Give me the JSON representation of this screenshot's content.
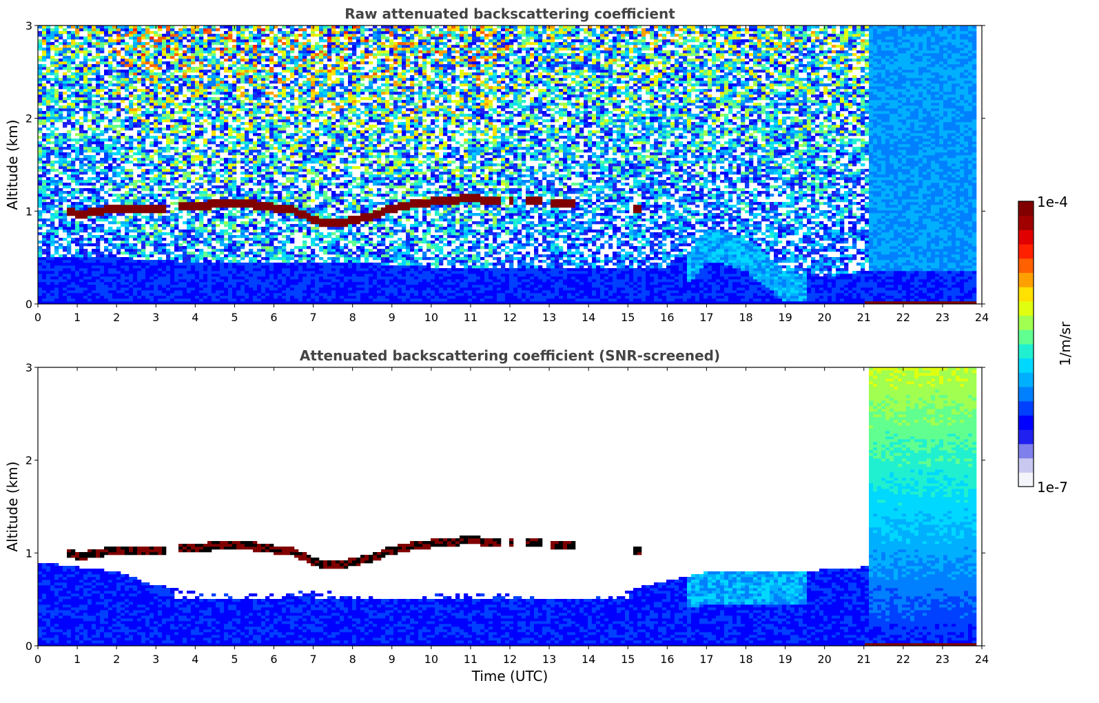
{
  "chart_data": [
    {
      "type": "heatmap",
      "title": "Raw attenuated backscattering coefficient",
      "xlabel": "",
      "ylabel": "Altitude (km)",
      "xlim": [
        0,
        24
      ],
      "ylim": [
        0,
        3
      ],
      "x_ticks": [
        "0",
        "1",
        "2",
        "3",
        "4",
        "5",
        "6",
        "7",
        "8",
        "9",
        "10",
        "11",
        "12",
        "13",
        "14",
        "15",
        "16",
        "17",
        "18",
        "19",
        "20",
        "21",
        "22",
        "23",
        "24"
      ],
      "y_ticks": [
        "0",
        "1",
        "2",
        "3"
      ],
      "grid": false,
      "data_end_time": 23.85,
      "noise_level": "high",
      "cloud_layer_altitude_km": [
        [
          0.7,
          1.02
        ],
        [
          1.0,
          0.97
        ],
        [
          1.5,
          0.99
        ],
        [
          1.8,
          1.02
        ],
        [
          2.5,
          1.03
        ],
        [
          3.0,
          1.03
        ],
        [
          3.5,
          1.05
        ],
        [
          4.0,
          1.04
        ],
        [
          4.5,
          1.08
        ],
        [
          5.0,
          1.07
        ],
        [
          5.5,
          1.07
        ],
        [
          6.0,
          1.04
        ],
        [
          6.5,
          1.02
        ],
        [
          6.8,
          0.95
        ],
        [
          7.0,
          0.9
        ],
        [
          7.5,
          0.87
        ],
        [
          8.0,
          0.9
        ],
        [
          8.5,
          0.95
        ],
        [
          9.0,
          1.03
        ],
        [
          9.5,
          1.07
        ],
        [
          10.0,
          1.1
        ],
        [
          10.5,
          1.12
        ],
        [
          11.0,
          1.14
        ],
        [
          11.5,
          1.12
        ],
        [
          12.0,
          1.1
        ],
        [
          12.5,
          1.1
        ],
        [
          13.0,
          1.1
        ],
        [
          13.6,
          1.08
        ],
        [
          15.2,
          1.02
        ]
      ],
      "cloud_gaps_h": [
        [
          3.3,
          3.6
        ],
        [
          6.8,
          6.85
        ],
        [
          11.8,
          12.0
        ],
        [
          12.1,
          12.45
        ],
        [
          12.85,
          13.0
        ],
        [
          13.7,
          15.1
        ]
      ],
      "boundary_layer_top_km": [
        [
          0,
          0.5
        ],
        [
          2,
          0.5
        ],
        [
          4,
          0.45
        ],
        [
          6,
          0.45
        ],
        [
          8,
          0.45
        ],
        [
          10,
          0.4
        ],
        [
          12,
          0.4
        ],
        [
          14,
          0.4
        ],
        [
          16,
          0.4
        ],
        [
          16.5,
          0.55
        ],
        [
          17,
          0.8
        ],
        [
          17.5,
          0.78
        ],
        [
          18,
          0.7
        ],
        [
          18.5,
          0.55
        ],
        [
          19,
          0.35
        ],
        [
          20,
          0.3
        ],
        [
          21,
          0.35
        ],
        [
          21.2,
          0.35
        ]
      ],
      "precipitation_columns_h": [
        21.2,
        21.55,
        22.0,
        22.45,
        23.0
      ]
    },
    {
      "type": "heatmap",
      "title": "Attenuated backscattering coefficient (SNR-screened)",
      "xlabel": "Time (UTC)",
      "ylabel": "Altitude (km)",
      "xlim": [
        0,
        24
      ],
      "ylim": [
        0,
        3
      ],
      "x_ticks": [
        "0",
        "1",
        "2",
        "3",
        "4",
        "5",
        "6",
        "7",
        "8",
        "9",
        "10",
        "11",
        "12",
        "13",
        "14",
        "15",
        "16",
        "17",
        "18",
        "19",
        "20",
        "21",
        "22",
        "23",
        "24"
      ],
      "y_ticks": [
        "0",
        "1",
        "2",
        "3"
      ],
      "grid": false,
      "noise_level": "screened",
      "screened_top_km": [
        [
          0,
          0.9
        ],
        [
          1,
          0.85
        ],
        [
          2,
          0.8
        ],
        [
          3,
          0.65
        ],
        [
          4,
          0.6
        ],
        [
          5,
          0.55
        ],
        [
          6,
          0.55
        ],
        [
          7,
          0.6
        ],
        [
          8,
          0.55
        ],
        [
          9,
          0.5
        ],
        [
          10,
          0.55
        ],
        [
          11,
          0.55
        ],
        [
          12,
          0.55
        ],
        [
          13,
          0.5
        ],
        [
          14,
          0.5
        ],
        [
          15,
          0.6
        ],
        [
          16,
          0.7
        ],
        [
          17,
          0.8
        ],
        [
          18,
          0.8
        ],
        [
          19,
          0.8
        ],
        [
          20,
          0.82
        ],
        [
          21,
          0.85
        ]
      ]
    }
  ],
  "colorbar": {
    "label": "1/m/sr",
    "max_label": "1e-4",
    "min_label": "1e-7",
    "scale": "log",
    "colors": [
      "#f4f4fb",
      "#c8c8f0",
      "#8080ec",
      "#2020f0",
      "#0000ff",
      "#0040ff",
      "#0080ff",
      "#00b0ff",
      "#00d8ff",
      "#20f0d0",
      "#60ff90",
      "#a0ff50",
      "#e0ff10",
      "#ffe000",
      "#ffa000",
      "#ff6000",
      "#ff2000",
      "#e00000",
      "#a00000",
      "#800000"
    ]
  }
}
